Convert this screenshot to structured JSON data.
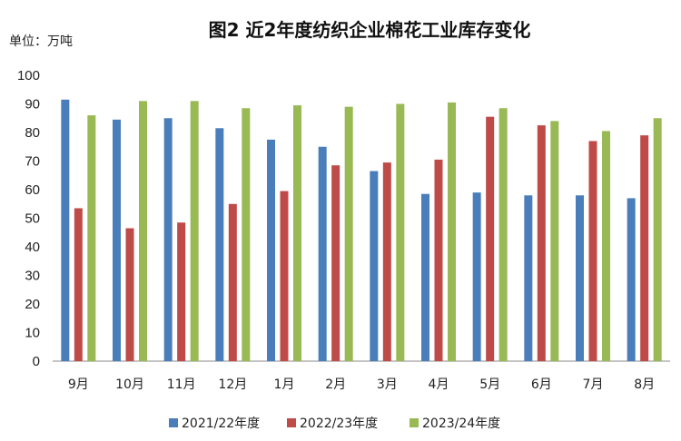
{
  "chart_data": {
    "type": "bar",
    "title": "图2  近2年度纺织企业棉花工业库存变化",
    "unit_label": "单位：万吨",
    "categories": [
      "9月",
      "10月",
      "11月",
      "12月",
      "1月",
      "2月",
      "3月",
      "4月",
      "5月",
      "6月",
      "7月",
      "8月"
    ],
    "y_ticks": [
      "0",
      "10",
      "20",
      "30",
      "40",
      "50",
      "60",
      "70",
      "80",
      "90",
      "100"
    ],
    "ylim": [
      0,
      100
    ],
    "grid": false,
    "legend_position": "bottom",
    "series": [
      {
        "name": "2021/22年度",
        "color": "#4a7ebb",
        "values": [
          91.5,
          84.5,
          85,
          81.5,
          77.5,
          75,
          66.5,
          58.5,
          59,
          58,
          58,
          57
        ]
      },
      {
        "name": "2022/23年度",
        "color": "#be4b48",
        "values": [
          53.5,
          46.5,
          48.5,
          55,
          59.5,
          68.5,
          69.5,
          70.5,
          85.5,
          82.5,
          77,
          79
        ]
      },
      {
        "name": "2023/24年度",
        "color": "#98b954",
        "values": [
          86,
          91,
          91,
          88.5,
          89.5,
          89,
          90,
          90.5,
          88.5,
          84,
          80.5,
          85
        ]
      }
    ]
  }
}
